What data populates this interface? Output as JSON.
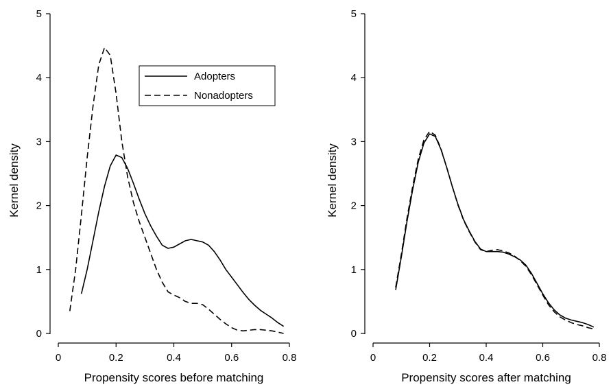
{
  "chart_data": [
    {
      "type": "line",
      "title": "",
      "xlabel": "Propensity scores before matching",
      "ylabel": "Kernel density",
      "xlim": [
        0,
        0.8
      ],
      "ylim": [
        0,
        5
      ],
      "xticks": [
        "0",
        "0.2",
        "0.4",
        "0.6",
        "0.8"
      ],
      "yticks": [
        "0",
        "1",
        "2",
        "3",
        "4",
        "5"
      ],
      "grid": false,
      "legend": {
        "position": "top-right",
        "entries": [
          "Adopters",
          "Nonadopters"
        ]
      },
      "series": [
        {
          "name": "Adopters",
          "style": "solid",
          "x": [
            0.08,
            0.1,
            0.12,
            0.14,
            0.16,
            0.18,
            0.2,
            0.22,
            0.24,
            0.26,
            0.28,
            0.3,
            0.32,
            0.34,
            0.36,
            0.38,
            0.4,
            0.42,
            0.44,
            0.46,
            0.48,
            0.5,
            0.52,
            0.54,
            0.56,
            0.58,
            0.6,
            0.62,
            0.64,
            0.66,
            0.68,
            0.7,
            0.72,
            0.74,
            0.76,
            0.78
          ],
          "y": [
            0.62,
            1.0,
            1.45,
            1.9,
            2.3,
            2.62,
            2.79,
            2.75,
            2.58,
            2.35,
            2.1,
            1.87,
            1.68,
            1.52,
            1.38,
            1.33,
            1.35,
            1.4,
            1.45,
            1.47,
            1.45,
            1.43,
            1.38,
            1.28,
            1.15,
            1.0,
            0.88,
            0.76,
            0.64,
            0.53,
            0.44,
            0.36,
            0.3,
            0.24,
            0.17,
            0.11
          ]
        },
        {
          "name": "Nonadopters",
          "style": "dashed",
          "x": [
            0.04,
            0.06,
            0.08,
            0.1,
            0.12,
            0.14,
            0.16,
            0.18,
            0.2,
            0.22,
            0.24,
            0.26,
            0.28,
            0.3,
            0.32,
            0.34,
            0.36,
            0.38,
            0.4,
            0.42,
            0.44,
            0.46,
            0.48,
            0.5,
            0.52,
            0.54,
            0.56,
            0.58,
            0.6,
            0.62,
            0.64,
            0.66,
            0.68,
            0.7,
            0.72,
            0.74,
            0.76,
            0.78
          ],
          "y": [
            0.35,
            1.0,
            1.85,
            2.75,
            3.55,
            4.2,
            4.47,
            4.35,
            3.75,
            3.0,
            2.45,
            2.05,
            1.75,
            1.5,
            1.25,
            1.0,
            0.8,
            0.65,
            0.6,
            0.56,
            0.5,
            0.47,
            0.47,
            0.45,
            0.38,
            0.3,
            0.22,
            0.15,
            0.09,
            0.05,
            0.04,
            0.05,
            0.06,
            0.06,
            0.05,
            0.04,
            0.02,
            0.0
          ]
        }
      ]
    },
    {
      "type": "line",
      "title": "",
      "xlabel": "Propensity scores after matching",
      "ylabel": "Kernel density",
      "xlim": [
        0,
        0.8
      ],
      "ylim": [
        0,
        5
      ],
      "xticks": [
        "0",
        "0.2",
        "0.4",
        "0.6",
        "0.8"
      ],
      "yticks": [
        "0",
        "1",
        "2",
        "3",
        "4",
        "5"
      ],
      "grid": false,
      "series": [
        {
          "name": "Adopters",
          "style": "solid",
          "x": [
            0.08,
            0.1,
            0.12,
            0.14,
            0.16,
            0.18,
            0.2,
            0.22,
            0.24,
            0.26,
            0.28,
            0.3,
            0.32,
            0.34,
            0.36,
            0.38,
            0.4,
            0.42,
            0.44,
            0.46,
            0.48,
            0.5,
            0.52,
            0.54,
            0.56,
            0.58,
            0.6,
            0.62,
            0.64,
            0.66,
            0.68,
            0.7,
            0.72,
            0.74,
            0.76,
            0.78
          ],
          "y": [
            0.68,
            1.2,
            1.75,
            2.25,
            2.68,
            2.98,
            3.12,
            3.08,
            2.88,
            2.6,
            2.3,
            2.02,
            1.78,
            1.6,
            1.44,
            1.32,
            1.28,
            1.28,
            1.28,
            1.27,
            1.24,
            1.2,
            1.15,
            1.07,
            0.94,
            0.78,
            0.62,
            0.48,
            0.37,
            0.29,
            0.24,
            0.21,
            0.19,
            0.17,
            0.14,
            0.1
          ]
        },
        {
          "name": "Nonadopters",
          "style": "dashed",
          "x": [
            0.08,
            0.1,
            0.12,
            0.14,
            0.16,
            0.18,
            0.2,
            0.22,
            0.24,
            0.26,
            0.28,
            0.3,
            0.32,
            0.34,
            0.36,
            0.38,
            0.4,
            0.42,
            0.44,
            0.46,
            0.48,
            0.5,
            0.52,
            0.54,
            0.56,
            0.58,
            0.6,
            0.62,
            0.64,
            0.66,
            0.68,
            0.7,
            0.72,
            0.74,
            0.76,
            0.78
          ],
          "y": [
            0.72,
            1.24,
            1.8,
            2.3,
            2.73,
            3.03,
            3.16,
            3.1,
            2.89,
            2.6,
            2.3,
            2.01,
            1.77,
            1.59,
            1.43,
            1.31,
            1.28,
            1.3,
            1.31,
            1.29,
            1.26,
            1.21,
            1.14,
            1.05,
            0.92,
            0.76,
            0.6,
            0.45,
            0.34,
            0.26,
            0.21,
            0.17,
            0.14,
            0.12,
            0.09,
            0.07
          ]
        }
      ]
    }
  ]
}
